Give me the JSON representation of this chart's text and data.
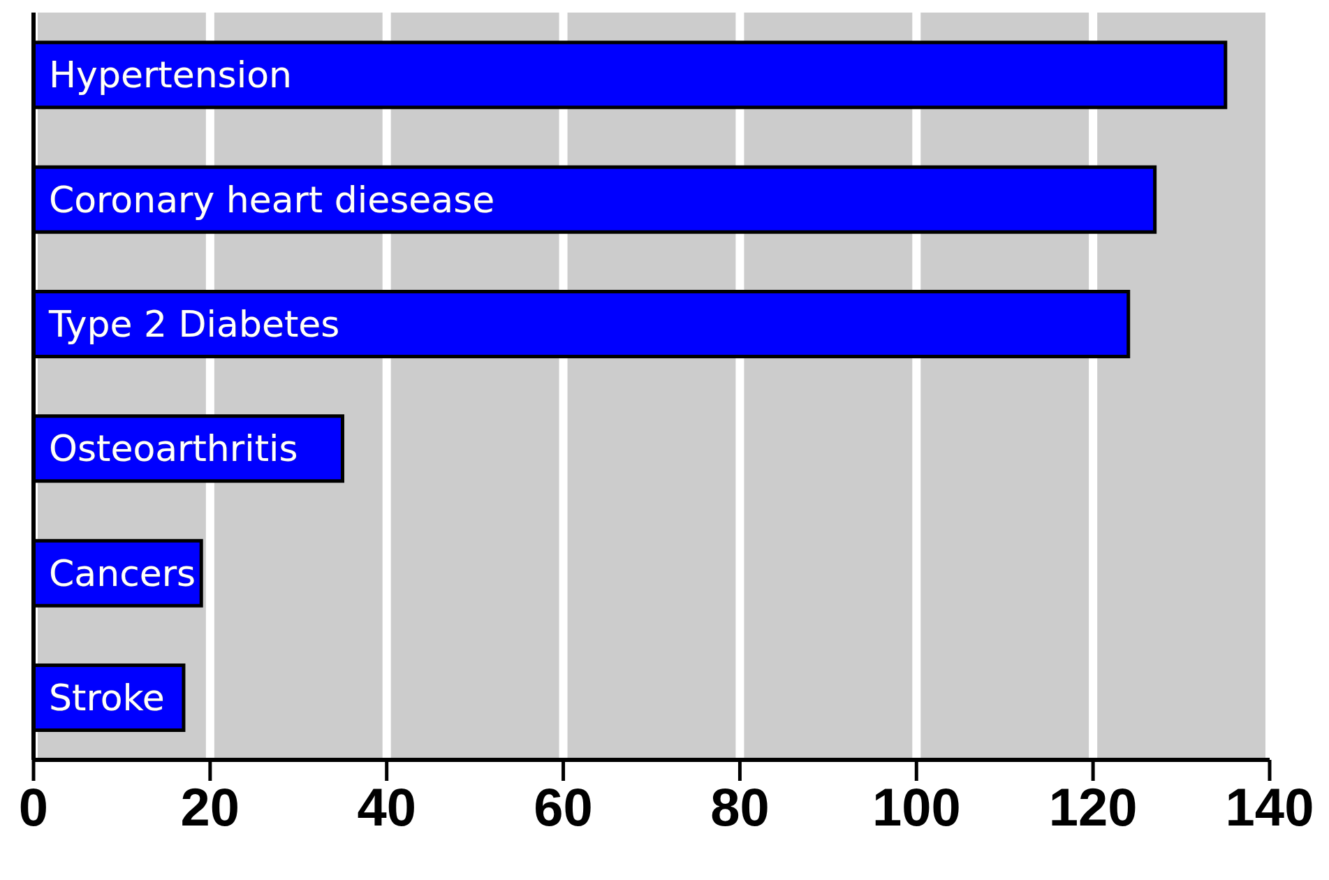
{
  "chart_data": {
    "type": "bar",
    "orientation": "horizontal",
    "categories": [
      "Hypertension",
      "Coronary heart diesease",
      "Type 2 Diabetes",
      "Osteoarthritis",
      "Cancers",
      "Stroke"
    ],
    "values": [
      135,
      127,
      124,
      35,
      19,
      17
    ],
    "color": "#0000ff",
    "xlim": [
      0,
      140
    ],
    "xticks": [
      0,
      20,
      40,
      60,
      80,
      100,
      120,
      140
    ],
    "grid": "x"
  }
}
